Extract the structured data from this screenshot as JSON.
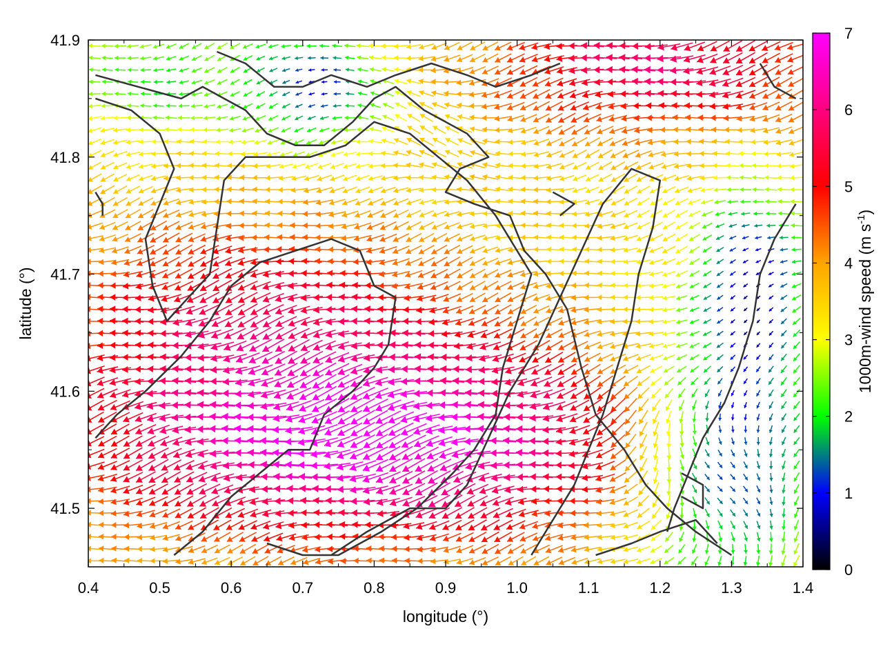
{
  "chart_data": {
    "type": "vector-field",
    "title": "",
    "xlabel": "longitude (°)",
    "ylabel": "latitude (°)",
    "xlim": [
      0.4,
      1.4
    ],
    "ylim": [
      41.45,
      41.9
    ],
    "x_ticks": [
      "0.4",
      "0.5",
      "0.6",
      "0.7",
      "0.8",
      "0.9",
      "1.0",
      "1.1",
      "1.2",
      "1.3",
      "1.4"
    ],
    "y_ticks": [
      "41.5",
      "41.6",
      "41.7",
      "41.8",
      "41.9"
    ],
    "grid": false,
    "colorbar": {
      "label": "1000m-wind speed (m s",
      "label_sup": "-1",
      "label_close": ")",
      "range": [
        0,
        7
      ],
      "ticks": [
        "0",
        "1",
        "2",
        "3",
        "4",
        "5",
        "6",
        "7"
      ],
      "colors": [
        "#000000",
        "#0000ff",
        "#00ff00",
        "#ffff00",
        "#ffa500",
        "#ff0000",
        "#ff00ff"
      ]
    },
    "wind_field": {
      "nx": 56,
      "ny": 44,
      "prevailing_direction": "from east (arrows point west)",
      "max_speed_region": [
        [
          0.55,
          41.5
        ],
        [
          1.05,
          41.64
        ]
      ],
      "calm_regions": [
        [
          1.27,
          41.54
        ],
        [
          0.83,
          41.85
        ]
      ]
    },
    "coastline": [
      [
        0.41,
        41.87
      ],
      [
        0.47,
        41.86
      ],
      [
        0.53,
        41.85
      ],
      [
        0.56,
        41.86
      ],
      [
        0.59,
        41.85
      ],
      [
        0.62,
        41.84
      ],
      [
        0.65,
        41.82
      ],
      [
        0.69,
        41.81
      ],
      [
        0.73,
        41.81
      ],
      [
        0.77,
        41.83
      ],
      [
        0.8,
        41.85
      ],
      [
        0.83,
        41.86
      ],
      [
        0.87,
        41.84
      ],
      [
        0.9,
        41.83
      ],
      [
        0.93,
        41.82
      ],
      [
        0.96,
        41.8
      ],
      [
        0.92,
        41.79
      ],
      [
        0.9,
        41.77
      ],
      [
        0.94,
        41.76
      ],
      [
        0.99,
        41.75
      ],
      [
        1.01,
        41.72
      ],
      [
        1.04,
        41.7
      ],
      [
        1.07,
        41.67
      ],
      [
        1.09,
        41.62
      ],
      [
        1.11,
        41.58
      ],
      [
        1.15,
        41.55
      ],
      [
        1.18,
        41.52
      ],
      [
        1.21,
        41.5
      ],
      [
        1.25,
        41.48
      ],
      [
        1.3,
        41.46
      ]
    ],
    "terrain_contours": [
      [
        [
          0.41,
          41.85
        ],
        [
          0.46,
          41.84
        ],
        [
          0.5,
          41.82
        ],
        [
          0.52,
          41.79
        ],
        [
          0.5,
          41.76
        ],
        [
          0.48,
          41.73
        ],
        [
          0.49,
          41.69
        ],
        [
          0.51,
          41.66
        ],
        [
          0.54,
          41.68
        ],
        [
          0.57,
          41.7
        ],
        [
          0.58,
          41.74
        ],
        [
          0.59,
          41.78
        ],
        [
          0.62,
          41.8
        ],
        [
          0.66,
          41.8
        ],
        [
          0.71,
          41.8
        ],
        [
          0.76,
          41.81
        ],
        [
          0.8,
          41.83
        ],
        [
          0.85,
          41.82
        ],
        [
          0.89,
          41.8
        ],
        [
          0.93,
          41.78
        ],
        [
          0.97,
          41.75
        ],
        [
          1.0,
          41.72
        ],
        [
          1.02,
          41.7
        ],
        [
          1.0,
          41.66
        ],
        [
          0.98,
          41.62
        ],
        [
          0.97,
          41.58
        ],
        [
          0.94,
          41.55
        ],
        [
          0.91,
          41.53
        ],
        [
          0.86,
          41.5
        ],
        [
          0.81,
          41.48
        ],
        [
          0.75,
          41.46
        ],
        [
          0.7,
          41.46
        ],
        [
          0.65,
          41.47
        ]
      ],
      [
        [
          0.41,
          41.56
        ],
        [
          0.44,
          41.58
        ],
        [
          0.48,
          41.6
        ],
        [
          0.53,
          41.63
        ],
        [
          0.57,
          41.66
        ],
        [
          0.6,
          41.69
        ],
        [
          0.64,
          41.71
        ],
        [
          0.69,
          41.72
        ],
        [
          0.74,
          41.73
        ],
        [
          0.78,
          41.72
        ],
        [
          0.8,
          41.69
        ],
        [
          0.83,
          41.68
        ],
        [
          0.82,
          41.64
        ],
        [
          0.8,
          41.62
        ],
        [
          0.77,
          41.6
        ],
        [
          0.73,
          41.58
        ],
        [
          0.71,
          41.55
        ],
        [
          0.68,
          41.55
        ],
        [
          0.64,
          41.53
        ],
        [
          0.6,
          41.51
        ],
        [
          0.56,
          41.48
        ],
        [
          0.52,
          41.46
        ]
      ],
      [
        [
          0.74,
          41.46
        ],
        [
          0.79,
          41.48
        ],
        [
          0.85,
          41.5
        ],
        [
          0.9,
          41.5
        ],
        [
          0.93,
          41.52
        ],
        [
          0.96,
          41.56
        ],
        [
          0.99,
          41.6
        ],
        [
          1.03,
          41.64
        ],
        [
          1.06,
          41.68
        ],
        [
          1.09,
          41.72
        ],
        [
          1.12,
          41.76
        ],
        [
          1.16,
          41.79
        ],
        [
          1.2,
          41.78
        ],
        [
          1.19,
          41.74
        ],
        [
          1.17,
          41.7
        ],
        [
          1.16,
          41.66
        ],
        [
          1.14,
          41.62
        ],
        [
          1.12,
          41.58
        ],
        [
          1.1,
          41.55
        ],
        [
          1.08,
          41.52
        ],
        [
          1.05,
          41.49
        ],
        [
          1.02,
          41.46
        ]
      ],
      [
        [
          1.39,
          41.76
        ],
        [
          1.36,
          41.73
        ],
        [
          1.34,
          41.7
        ],
        [
          1.33,
          41.66
        ],
        [
          1.31,
          41.62
        ],
        [
          1.29,
          41.59
        ],
        [
          1.26,
          41.56
        ],
        [
          1.24,
          41.53
        ],
        [
          1.22,
          41.5
        ],
        [
          1.21,
          41.48
        ]
      ],
      [
        [
          1.11,
          41.46
        ],
        [
          1.16,
          41.47
        ],
        [
          1.2,
          41.48
        ],
        [
          1.25,
          41.49
        ],
        [
          1.28,
          41.47
        ]
      ],
      [
        [
          1.23,
          41.53
        ],
        [
          1.26,
          41.52
        ],
        [
          1.26,
          41.5
        ],
        [
          1.23,
          41.51
        ]
      ],
      [
        [
          1.34,
          41.88
        ],
        [
          1.36,
          41.86
        ],
        [
          1.39,
          41.85
        ]
      ],
      [
        [
          0.41,
          41.77
        ],
        [
          0.42,
          41.76
        ],
        [
          0.42,
          41.75
        ]
      ],
      [
        [
          1.05,
          41.77
        ],
        [
          1.08,
          41.76
        ],
        [
          1.06,
          41.75
        ]
      ],
      [
        [
          0.58,
          41.89
        ],
        [
          0.62,
          41.88
        ],
        [
          0.66,
          41.86
        ],
        [
          0.7,
          41.86
        ],
        [
          0.74,
          41.87
        ],
        [
          0.79,
          41.86
        ],
        [
          0.83,
          41.87
        ],
        [
          0.88,
          41.88
        ],
        [
          0.93,
          41.87
        ],
        [
          0.97,
          41.86
        ],
        [
          1.02,
          41.87
        ],
        [
          1.06,
          41.88
        ]
      ]
    ]
  }
}
